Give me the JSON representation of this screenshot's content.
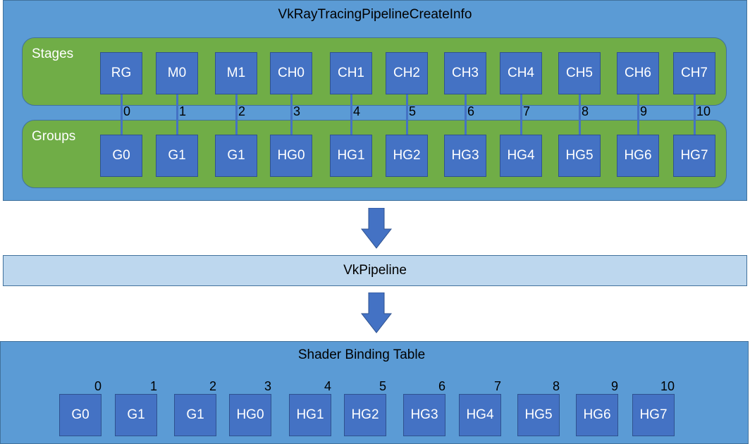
{
  "create_info": {
    "title": "VkRayTracingPipelineCreateInfo",
    "stages_label": "Stages",
    "groups_label": "Groups",
    "stages": [
      "RG",
      "M0",
      "M1",
      "CH0",
      "CH1",
      "CH2",
      "CH3",
      "CH4",
      "CH5",
      "CH6",
      "CH7"
    ],
    "groups": [
      "G0",
      "G1",
      "G1",
      "HG0",
      "HG1",
      "HG2",
      "HG3",
      "HG4",
      "HG5",
      "HG6",
      "HG7"
    ],
    "indices": [
      "0",
      "1",
      "2",
      "3",
      "4",
      "5",
      "6",
      "7",
      "8",
      "9",
      "10"
    ]
  },
  "pipeline": {
    "title": "VkPipeline"
  },
  "sbt": {
    "title": "Shader Binding Table",
    "entries": [
      "G0",
      "G1",
      "G1",
      "HG0",
      "HG1",
      "HG2",
      "HG3",
      "HG4",
      "HG5",
      "HG6",
      "HG7"
    ],
    "indices": [
      "0",
      "1",
      "2",
      "3",
      "4",
      "5",
      "6",
      "7",
      "8",
      "9",
      "10"
    ]
  },
  "colors": {
    "panel": "#5b9bd5",
    "group_bg": "#70ad47",
    "box": "#4472c4",
    "pipeline": "#bdd7ee",
    "arrow": "#4472c4"
  }
}
